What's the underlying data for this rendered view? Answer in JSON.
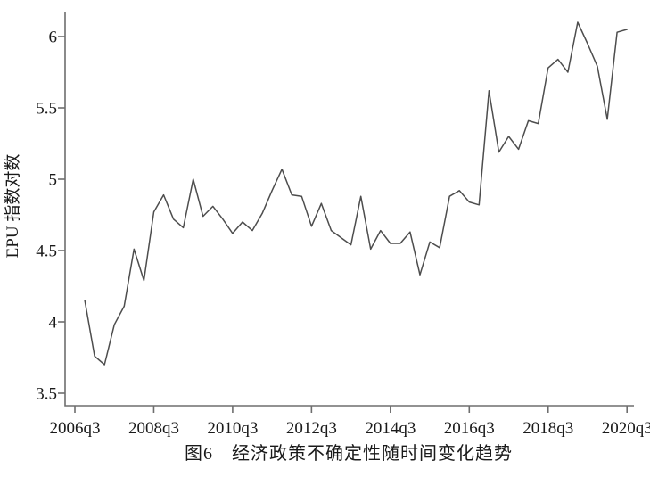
{
  "chart_data": {
    "type": "line",
    "title": "图6　经济政策不确定性随时间变化趋势",
    "ylabel": "EPU 指数对数",
    "xlabel": "",
    "x": [
      "2006q4",
      "2007q1",
      "2007q2",
      "2007q3",
      "2007q4",
      "2008q1",
      "2008q2",
      "2008q3",
      "2008q4",
      "2009q1",
      "2009q2",
      "2009q3",
      "2009q4",
      "2010q1",
      "2010q2",
      "2010q3",
      "2010q4",
      "2011q1",
      "2011q2",
      "2011q3",
      "2011q4",
      "2012q1",
      "2012q2",
      "2012q3",
      "2012q4",
      "2013q1",
      "2013q2",
      "2013q3",
      "2013q4",
      "2014q1",
      "2014q2",
      "2014q3",
      "2014q4",
      "2015q1",
      "2015q2",
      "2015q3",
      "2015q4",
      "2016q1",
      "2016q2",
      "2016q3",
      "2016q4",
      "2017q1",
      "2017q2",
      "2017q3",
      "2017q4",
      "2018q1",
      "2018q2",
      "2018q3",
      "2018q4",
      "2019q1",
      "2019q2",
      "2019q3",
      "2019q4",
      "2020q1",
      "2020q2",
      "2020q3"
    ],
    "values": [
      4.15,
      3.76,
      3.7,
      3.98,
      4.11,
      4.51,
      4.29,
      4.77,
      4.89,
      4.72,
      4.66,
      5.0,
      4.74,
      4.81,
      4.72,
      4.62,
      4.7,
      4.64,
      4.76,
      4.92,
      5.07,
      4.89,
      4.88,
      4.67,
      4.83,
      4.64,
      4.59,
      4.54,
      4.88,
      4.51,
      4.64,
      4.55,
      4.55,
      4.63,
      4.33,
      4.56,
      4.52,
      4.88,
      4.92,
      4.84,
      4.82,
      5.62,
      5.19,
      5.3,
      5.21,
      5.41,
      5.39,
      5.78,
      5.84,
      5.75,
      6.1,
      5.95,
      5.79,
      5.42,
      6.03,
      6.05
    ],
    "x_tick_labels": [
      "2006q3",
      "2008q3",
      "2010q3",
      "2012q3",
      "2014q3",
      "2016q3",
      "2018q3",
      "2020q3"
    ],
    "x_axis_start": "2006q3",
    "x_offset_quarters": 1,
    "y_ticks": [
      3.5,
      4,
      4.5,
      5,
      5.5,
      6
    ],
    "ylim": [
      3.5,
      6
    ],
    "grid": false,
    "legend": null,
    "line_color": "#4d4d4d",
    "axis_color": "#6e6e6e",
    "text_color": "#1a1a1a"
  }
}
